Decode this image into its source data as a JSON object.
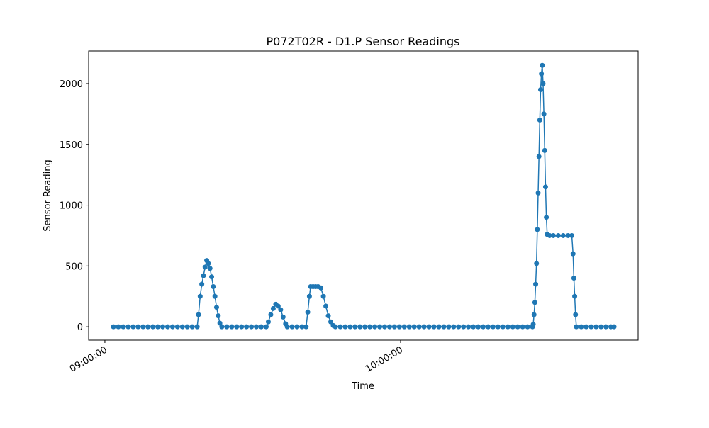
{
  "chart_data": {
    "type": "line",
    "title": "P072T02R - D1.P Sensor Readings",
    "x_label": "Time",
    "y_label": "Sensor Reading",
    "x": [
      "09:01:44",
      "09:02:44",
      "09:03:44",
      "09:04:44",
      "09:05:44",
      "09:06:44",
      "09:07:44",
      "09:08:44",
      "09:09:44",
      "09:10:44",
      "09:11:44",
      "09:12:44",
      "09:13:44",
      "09:14:44",
      "09:15:44",
      "09:16:44",
      "09:17:44",
      "09:18:44",
      "09:19:00",
      "09:19:20",
      "09:19:40",
      "09:20:00",
      "09:20:20",
      "09:20:40",
      "09:21:00",
      "09:21:20",
      "09:21:40",
      "09:22:00",
      "09:22:20",
      "09:22:40",
      "09:23:00",
      "09:23:20",
      "09:23:44",
      "09:24:44",
      "09:25:44",
      "09:26:44",
      "09:27:44",
      "09:28:44",
      "09:29:44",
      "09:30:44",
      "09:31:44",
      "09:32:44",
      "09:33:10",
      "09:33:40",
      "09:34:10",
      "09:34:40",
      "09:35:10",
      "09:35:40",
      "09:36:10",
      "09:36:40",
      "09:37:00",
      "09:38:00",
      "09:39:00",
      "09:40:00",
      "09:40:50",
      "09:41:10",
      "09:41:30",
      "09:41:45",
      "09:42:15",
      "09:42:45",
      "09:43:15",
      "09:43:50",
      "09:44:20",
      "09:44:50",
      "09:45:20",
      "09:45:50",
      "09:46:20",
      "09:46:46",
      "09:47:46",
      "09:48:46",
      "09:49:46",
      "09:50:46",
      "09:51:46",
      "09:52:46",
      "09:53:46",
      "09:54:46",
      "09:55:46",
      "09:56:46",
      "09:57:46",
      "09:58:46",
      "09:59:46",
      "10:00:46",
      "10:01:46",
      "10:02:46",
      "10:03:46",
      "10:04:46",
      "10:05:46",
      "10:06:46",
      "10:07:46",
      "10:08:46",
      "10:09:46",
      "10:10:46",
      "10:11:46",
      "10:12:46",
      "10:13:46",
      "10:14:46",
      "10:15:46",
      "10:16:46",
      "10:17:46",
      "10:18:46",
      "10:19:46",
      "10:20:46",
      "10:21:46",
      "10:22:46",
      "10:23:46",
      "10:24:46",
      "10:25:46",
      "10:26:46",
      "10:26:55",
      "10:27:05",
      "10:27:15",
      "10:27:25",
      "10:27:35",
      "10:27:45",
      "10:27:55",
      "10:28:05",
      "10:28:15",
      "10:28:25",
      "10:28:35",
      "10:28:45",
      "10:28:55",
      "10:29:05",
      "10:29:15",
      "10:29:25",
      "10:29:35",
      "10:29:45",
      "10:30:15",
      "10:31:00",
      "10:32:00",
      "10:33:00",
      "10:34:00",
      "10:34:45",
      "10:35:00",
      "10:35:10",
      "10:35:20",
      "10:35:30",
      "10:35:40",
      "10:36:40",
      "10:37:40",
      "10:38:40",
      "10:39:40",
      "10:40:40",
      "10:41:40",
      "10:42:40",
      "10:43:19"
    ],
    "series": [
      {
        "color": "#1f77b4",
        "values": [
          0,
          0,
          0,
          0,
          0,
          0,
          0,
          0,
          0,
          0,
          0,
          0,
          0,
          0,
          0,
          0,
          0,
          0,
          100,
          250,
          350,
          420,
          490,
          545,
          520,
          480,
          410,
          330,
          250,
          160,
          90,
          30,
          0,
          0,
          0,
          0,
          0,
          0,
          0,
          0,
          0,
          0,
          40,
          100,
          150,
          185,
          170,
          140,
          80,
          25,
          0,
          0,
          0,
          0,
          0,
          120,
          250,
          330,
          330,
          330,
          330,
          320,
          250,
          170,
          90,
          40,
          10,
          0,
          0,
          0,
          0,
          0,
          0,
          0,
          0,
          0,
          0,
          0,
          0,
          0,
          0,
          0,
          0,
          0,
          0,
          0,
          0,
          0,
          0,
          0,
          0,
          0,
          0,
          0,
          0,
          0,
          0,
          0,
          0,
          0,
          0,
          0,
          0,
          0,
          0,
          0,
          0,
          0,
          20,
          100,
          200,
          350,
          520,
          800,
          1100,
          1400,
          1700,
          1950,
          2080,
          2150,
          2000,
          1750,
          1450,
          1150,
          900,
          760,
          750,
          750,
          750,
          750,
          750,
          750,
          600,
          400,
          250,
          100,
          0,
          0,
          0,
          0,
          0,
          0,
          0,
          0,
          0
        ]
      }
    ],
    "xlim": [
      "08:56:42",
      "10:48:12"
    ],
    "xticks": [
      "09:00:00",
      "10:00:00"
    ],
    "ylim": [
      -110,
      2268
    ],
    "yticks": [
      0,
      500,
      1000,
      1500,
      2000
    ]
  }
}
